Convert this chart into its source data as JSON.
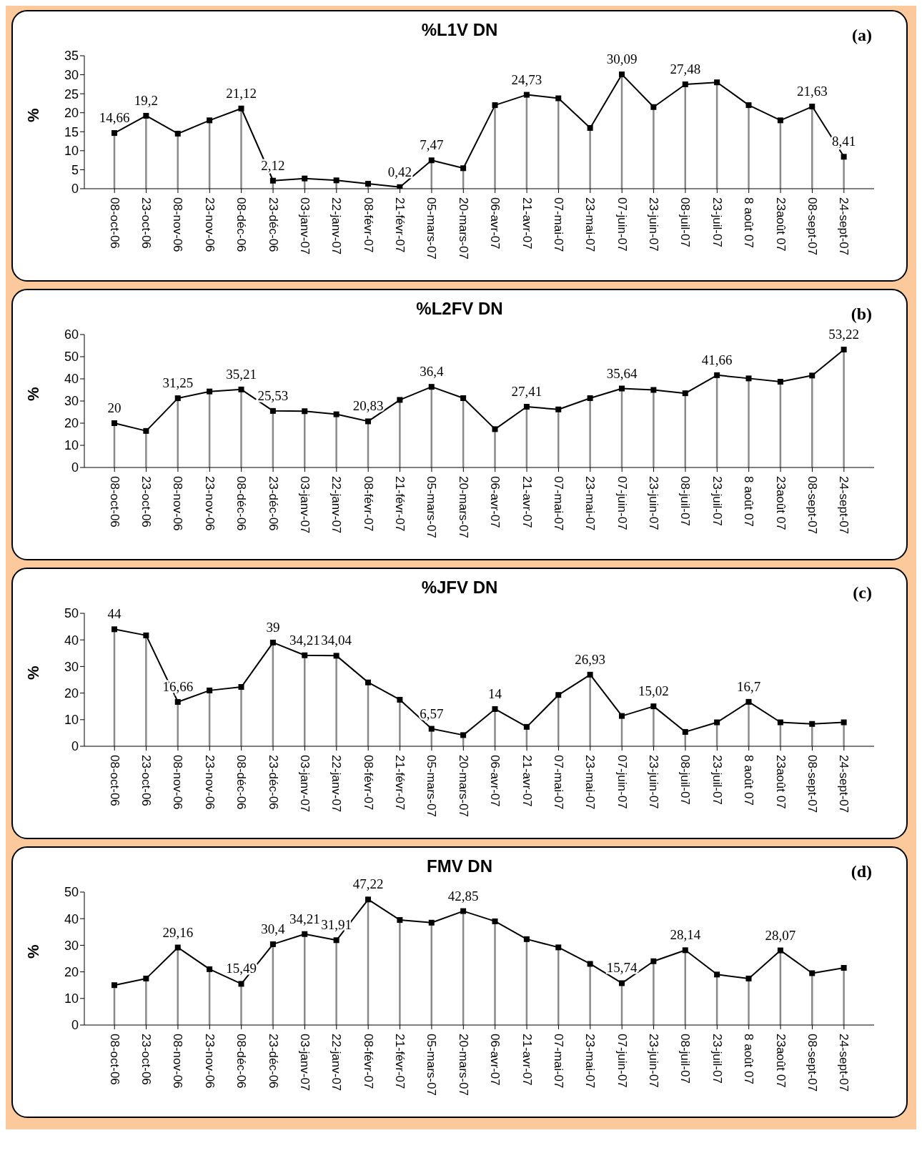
{
  "chart_data": [
    {
      "type": "lollipop",
      "title": "%L1V DN",
      "ylabel": "%",
      "annotations": [
        "(a)"
      ],
      "marker": "square",
      "grid": false,
      "legend": false,
      "ylim": [
        0,
        35
      ],
      "yticks": [
        0,
        5,
        10,
        15,
        20,
        25,
        30,
        35
      ],
      "categories": [
        "08-oct-06",
        "23-oct-06",
        "08-nov-06",
        "23-nov-06",
        "08-déc-06",
        "23-déc-06",
        "03-janv-07",
        "22-janv-07",
        "08-févr-07",
        "21-févr-07",
        "05-mars-07",
        "20-mars-07",
        "06-avr-07",
        "21-avr-07",
        "07-mai-07",
        "23-mai-07",
        "07-juin-07",
        "23-juin-07",
        "08-juil-07",
        "23-juil-07",
        "8 août 07",
        "23août 07",
        "08-sept-07",
        "24-sept-07"
      ],
      "series": [
        {
          "color": "#000000",
          "values": [
            14.66,
            19.2,
            14.5,
            18,
            21.12,
            2.12,
            2.7,
            2.2,
            1.3,
            0.42,
            7.47,
            5.4,
            22,
            24.73,
            23.8,
            16,
            30.09,
            21.5,
            27.48,
            28,
            22,
            18,
            21.63,
            8.41
          ],
          "value_labels": [
            "14,66",
            "19,2",
            null,
            null,
            "21,12",
            "2,12",
            null,
            null,
            null,
            "0,42",
            "7,47",
            null,
            null,
            "24,73",
            null,
            null,
            "30,09",
            null,
            "27,48",
            null,
            null,
            null,
            "21,63",
            "8,41"
          ]
        },
        {
          "type": "line",
          "marker": "none",
          "color": "#000000",
          "values": [
            14.66,
            19.2,
            14.5,
            18,
            21.12,
            2.12,
            2.7,
            2.2,
            1.3,
            0.42,
            7.47,
            5.4,
            22,
            24.73,
            23.8,
            16,
            30.09,
            21.5,
            27.48,
            28,
            22,
            18,
            21.63,
            8.41
          ]
        }
      ]
    },
    {
      "type": "lollipop",
      "title": "%L2FV DN",
      "ylabel": "%",
      "annotations": [
        "(b)"
      ],
      "marker": "square",
      "grid": false,
      "legend": false,
      "ylim": [
        0,
        60
      ],
      "yticks": [
        0,
        10,
        20,
        30,
        40,
        50,
        60
      ],
      "categories": [
        "08-oct-06",
        "23-oct-06",
        "08-nov-06",
        "23-nov-06",
        "08-déc-06",
        "23-déc-06",
        "03-janv-07",
        "22-janv-07",
        "08-févr-07",
        "21-févr-07",
        "05-mars-07",
        "20-mars-07",
        "06-avr-07",
        "21-avr-07",
        "07-mai-07",
        "23-mai-07",
        "07-juin-07",
        "23-juin-07",
        "08-juil-07",
        "23-juil-07",
        "8 août 07",
        "23août 07",
        "08-sept-07",
        "24-sept-07"
      ],
      "series": [
        {
          "color": "#000000",
          "values": [
            20,
            16.5,
            31.25,
            34.3,
            35.21,
            25.53,
            25.4,
            24,
            20.83,
            30.5,
            36.4,
            31.3,
            17.3,
            27.41,
            26.2,
            31.3,
            35.64,
            35,
            33.5,
            41.66,
            40.2,
            38.7,
            41.5,
            53.22
          ],
          "value_labels": [
            "20",
            null,
            "31,25",
            null,
            "35,21",
            "25,53",
            null,
            null,
            "20,83",
            null,
            "36,4",
            null,
            null,
            "27,41",
            null,
            null,
            "35,64",
            null,
            null,
            "41,66",
            null,
            null,
            null,
            "53,22"
          ]
        },
        {
          "type": "line",
          "marker": "none",
          "color": "#000000",
          "values": [
            20,
            16.5,
            31.25,
            34.3,
            35.21,
            25.53,
            25.4,
            24,
            20.83,
            30.5,
            36.4,
            31.3,
            17.3,
            27.41,
            26.2,
            31.3,
            35.64,
            35,
            33.5,
            41.66,
            40.2,
            38.7,
            41.5,
            53.22
          ]
        }
      ]
    },
    {
      "type": "lollipop",
      "title": "%JFV DN",
      "ylabel": "%",
      "annotations": [
        "(c)"
      ],
      "marker": "square",
      "grid": false,
      "legend": false,
      "ylim": [
        0,
        50
      ],
      "yticks": [
        0,
        10,
        20,
        30,
        40,
        50
      ],
      "categories": [
        "08-oct-06",
        "23-oct-06",
        "08-nov-06",
        "23-nov-06",
        "08-déc-06",
        "23-déc-06",
        "03-janv-07",
        "22-janv-07",
        "08-févr-07",
        "21-févr-07",
        "05-mars-07",
        "20-mars-07",
        "06-avr-07",
        "21-avr-07",
        "07-mai-07",
        "23-mai-07",
        "07-juin-07",
        "23-juin-07",
        "08-juil-07",
        "23-juil-07",
        "8 août 07",
        "23août 07",
        "08-sept-07",
        "24-sept-07"
      ],
      "series": [
        {
          "color": "#000000",
          "values": [
            44,
            41.7,
            16.66,
            21,
            22.3,
            39,
            34.21,
            34.04,
            24,
            17.5,
            6.57,
            4.2,
            14,
            7.3,
            19.3,
            26.93,
            11.4,
            15.02,
            5.4,
            9,
            16.7,
            9,
            8.4,
            9
          ],
          "value_labels": [
            "44",
            null,
            "16,66",
            null,
            null,
            "39",
            "34,21",
            "34,04",
            null,
            null,
            "6,57",
            null,
            "14",
            null,
            null,
            "26,93",
            null,
            "15,02",
            null,
            null,
            "16,7",
            null,
            null,
            null
          ]
        },
        {
          "type": "line",
          "marker": "none",
          "color": "#000000",
          "values": [
            44,
            41.7,
            16.66,
            21,
            22.3,
            39,
            34.21,
            34.04,
            24,
            17.5,
            6.57,
            4.2,
            14,
            7.3,
            19.3,
            26.93,
            11.4,
            15.02,
            5.4,
            9,
            16.7,
            9,
            8.4,
            9
          ]
        }
      ]
    },
    {
      "type": "lollipop",
      "title": "FMV DN",
      "ylabel": "%",
      "annotations": [
        "(d)"
      ],
      "marker": "square",
      "grid": false,
      "legend": false,
      "ylim": [
        0,
        50
      ],
      "yticks": [
        0,
        10,
        20,
        30,
        40,
        50
      ],
      "categories": [
        "08-oct-06",
        "23-oct-06",
        "08-nov-06",
        "23-nov-06",
        "08-déc-06",
        "23-déc-06",
        "03-janv-07",
        "22-janv-07",
        "08-févr-07",
        "21-févr-07",
        "05-mars-07",
        "20-mars-07",
        "06-avr-07",
        "21-avr-07",
        "07-mai-07",
        "23-mai-07",
        "07-juin-07",
        "23-juin-07",
        "08-juil-07",
        "23-juil-07",
        "8 août 07",
        "23août 07",
        "08-sept-07",
        "24-sept-07"
      ],
      "series": [
        {
          "color": "#000000",
          "values": [
            15,
            17.5,
            29.16,
            21,
            15.49,
            30.4,
            34.21,
            31.91,
            47.22,
            39.5,
            38.5,
            42.85,
            39,
            32.3,
            29.2,
            23,
            15.74,
            24,
            28.14,
            19,
            17.5,
            28.07,
            19.5,
            21.5
          ],
          "value_labels": [
            null,
            null,
            "29,16",
            null,
            "15,49",
            "30,4",
            "34,21",
            "31,91",
            "47,22",
            null,
            null,
            "42,85",
            null,
            null,
            null,
            null,
            "15,74",
            null,
            "28,14",
            null,
            null,
            "28,07",
            null,
            null
          ]
        },
        {
          "type": "line",
          "marker": "none",
          "color": "#000000",
          "values": [
            15,
            17.5,
            29.16,
            21,
            15.49,
            30.4,
            34.21,
            31.91,
            47.22,
            39.5,
            38.5,
            42.85,
            39,
            32.3,
            29.2,
            23,
            15.74,
            24,
            28.14,
            19,
            17.5,
            28.07,
            19.5,
            21.5
          ]
        }
      ]
    }
  ]
}
